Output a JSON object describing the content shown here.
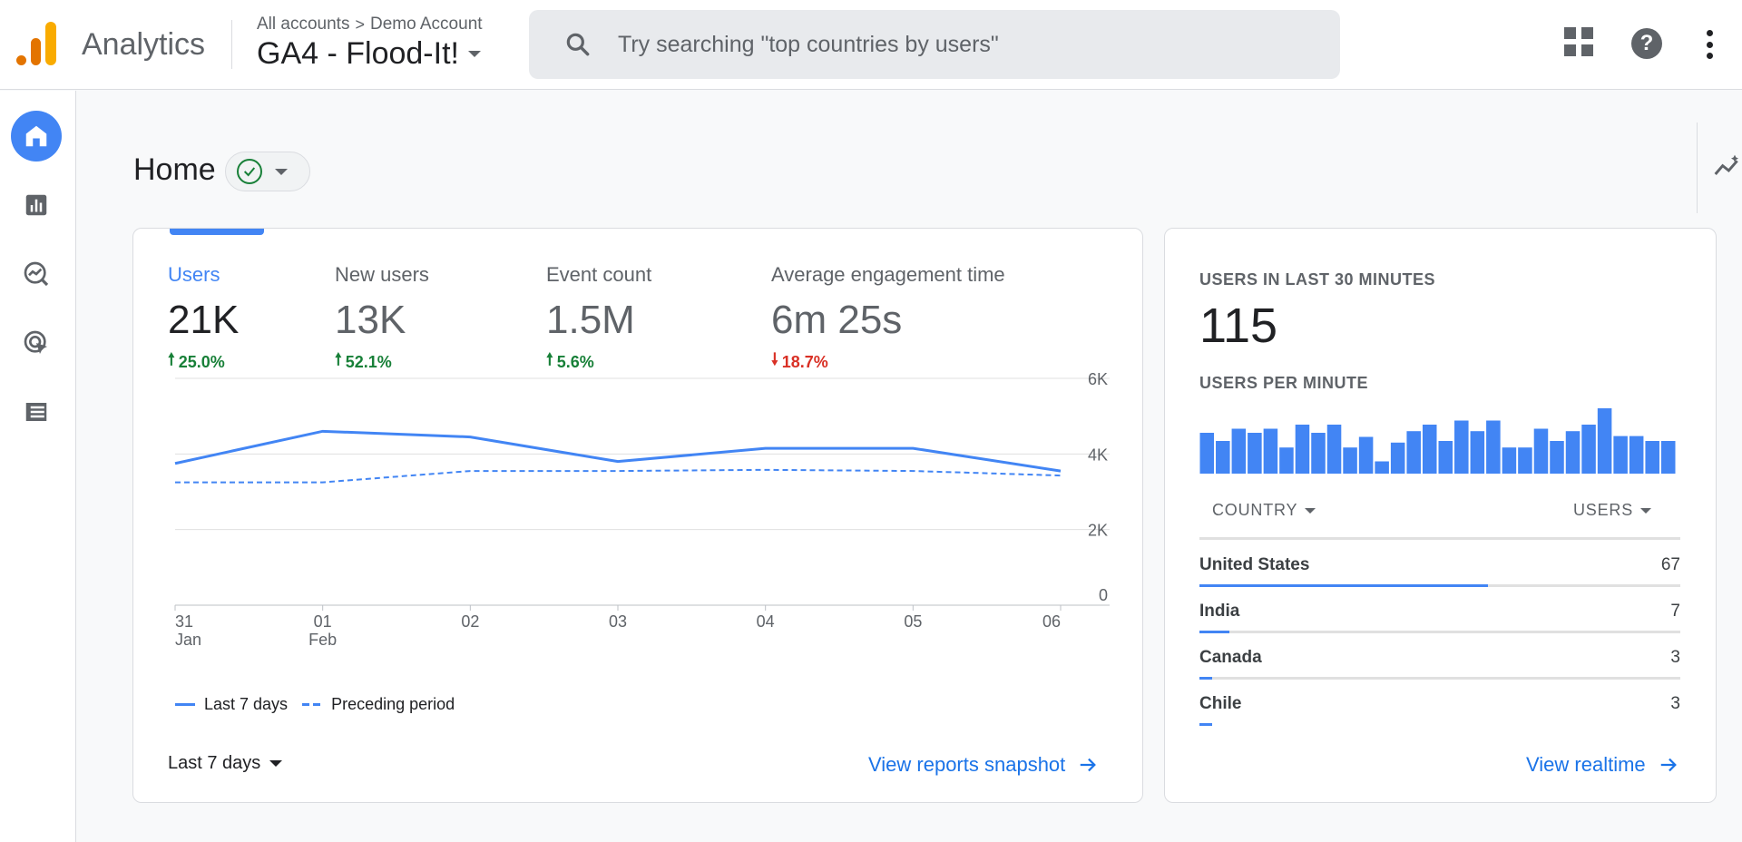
{
  "header": {
    "app_name": "Analytics",
    "breadcrumb": [
      "All accounts",
      "Demo Account"
    ],
    "breadcrumb_sep": ">",
    "property": "GA4 - Flood-It!",
    "search_placeholder": "Try searching \"top countries by users\""
  },
  "page": {
    "title": "Home"
  },
  "metrics": [
    {
      "label": "Users",
      "value": "21K",
      "delta": "25.0%",
      "direction": "up",
      "arrow": "🠕"
    },
    {
      "label": "New users",
      "value": "13K",
      "delta": "52.1%",
      "direction": "up",
      "arrow": "🠕"
    },
    {
      "label": "Event count",
      "value": "1.5M",
      "delta": "5.6%",
      "direction": "up",
      "arrow": "🠕"
    },
    {
      "label": "Average engagement time",
      "value": "6m 25s",
      "delta": "18.7%",
      "direction": "down",
      "arrow": "🠗"
    }
  ],
  "chart_data": {
    "type": "line",
    "x": [
      "31 Jan",
      "01 Feb",
      "02",
      "03",
      "04",
      "05",
      "06"
    ],
    "x_ticks": [
      [
        "31",
        "Jan"
      ],
      [
        "01",
        "Feb"
      ],
      [
        "02",
        ""
      ],
      [
        "03",
        ""
      ],
      [
        "04",
        ""
      ],
      [
        "05",
        ""
      ],
      [
        "06",
        ""
      ]
    ],
    "series": [
      {
        "name": "Last 7 days",
        "style": "solid",
        "values": [
          3750,
          4600,
          4450,
          3800,
          4150,
          4150,
          3550
        ]
      },
      {
        "name": "Preceding period",
        "style": "dashed",
        "values": [
          3250,
          3250,
          3550,
          3550,
          3580,
          3550,
          3430
        ]
      }
    ],
    "y_ticks": [
      {
        "value": 6000,
        "label": "6K"
      },
      {
        "value": 4000,
        "label": "4K"
      },
      {
        "value": 2000,
        "label": "2K"
      },
      {
        "value": 0,
        "label": "0"
      }
    ],
    "ylim": [
      0,
      6000
    ],
    "grid": true,
    "color": "#4285f4",
    "legend_placement": "bottom-left"
  },
  "date_range": "Last 7 days",
  "links": {
    "reports_snapshot": "View reports snapshot",
    "realtime": "View realtime"
  },
  "realtime": {
    "title": "USERS IN LAST 30 MINUTES",
    "value": "115",
    "subtitle": "USERS PER MINUTE",
    "per_minute": [
      5,
      4,
      5.5,
      5,
      5.5,
      3.2,
      6,
      5,
      6,
      3.2,
      4.5,
      1.5,
      3.8,
      5.2,
      6,
      4,
      6.5,
      5.2,
      6.5,
      3.2,
      3.2,
      5.5,
      4,
      5.2,
      6,
      8,
      4.6,
      4.6,
      4,
      4
    ],
    "bar_color": "#4285f4",
    "col_country": "COUNTRY",
    "col_users": "USERS",
    "countries": [
      {
        "name": "United States",
        "users": "67",
        "share": 0.6
      },
      {
        "name": "India",
        "users": "7",
        "share": 0.063
      },
      {
        "name": "Canada",
        "users": "3",
        "share": 0.027
      },
      {
        "name": "Chile",
        "users": "3",
        "share": 0.027
      }
    ]
  },
  "icons": {
    "search": "search-icon",
    "apps": "apps-grid-icon",
    "help": "help-icon",
    "more": "more-vert-icon",
    "nav": [
      "home-icon",
      "reports-icon",
      "explore-icon",
      "advertising-icon",
      "configure-icon"
    ],
    "insights": "insights-icon",
    "check": "check-circle-icon",
    "arrow": "arrow-forward-icon"
  },
  "colors": {
    "accent": "#4285f4",
    "up": "#188038",
    "down": "#d93025",
    "logo_orange": "#e37400",
    "logo_yellow": "#f9ab00"
  }
}
